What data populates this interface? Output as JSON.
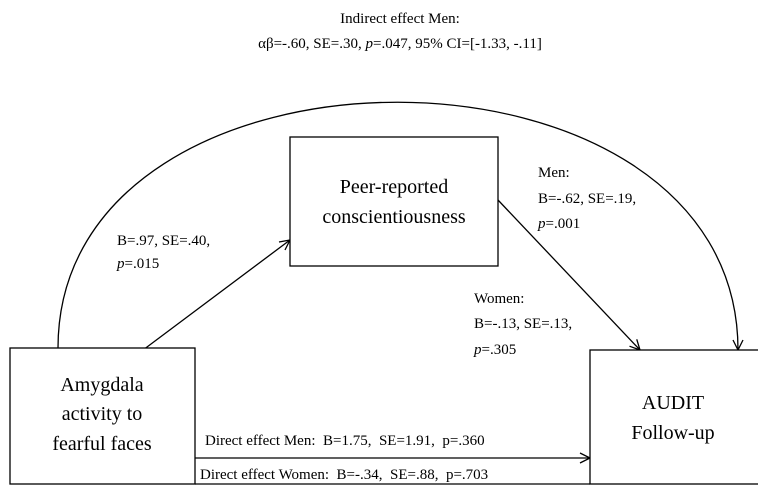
{
  "nodes": [
    {
      "lines": [
        "Peer-reported",
        "conscientiousness"
      ]
    },
    {
      "lines": [
        "Amygdala",
        "activity to",
        "fearful faces"
      ]
    },
    {
      "lines": [
        "AUDIT",
        "Follow-up"
      ]
    }
  ],
  "indirect_effect": {
    "lines": [
      "Indirect effect Men:",
      "αβ=-.60, SE=.30, p=.047, 95% CI=[-1.33, -.11]"
    ]
  },
  "path_a": {
    "lines": [
      "B=.97, SE=.40,",
      "p=.015"
    ]
  },
  "path_b_men": {
    "lines": [
      "Men:",
      "B=-.62, SE=.19,",
      "p=.001"
    ]
  },
  "path_b_women": {
    "lines": [
      "Women:",
      "B=-.13, SE=.13,",
      "p=.305"
    ]
  },
  "direct_effect": {
    "men": "Direct effect Men:  B=1.75,  SE=1.91,  p=.360",
    "women": "Direct effect Women:  B=-.34,  SE=.88,  p=.703"
  }
}
